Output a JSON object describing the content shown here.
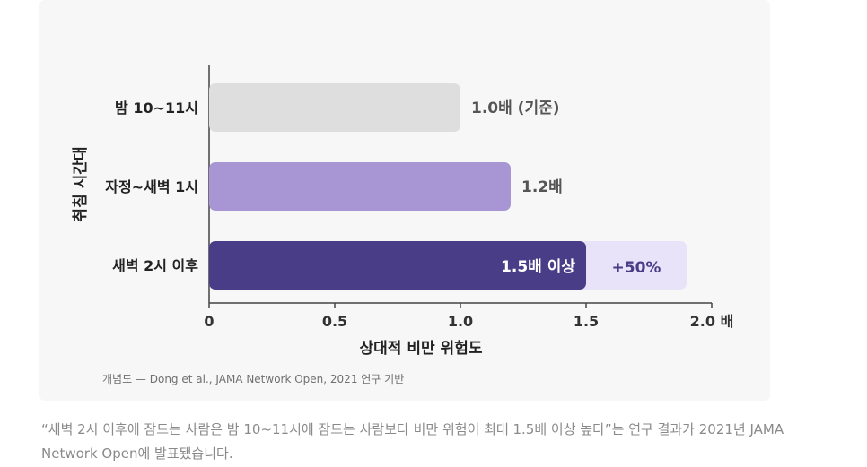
{
  "chart_data": {
    "type": "bar",
    "orientation": "horizontal",
    "categories": [
      "밤 10~11시",
      "자정~새벽 1시",
      "새벽 2시 이후"
    ],
    "values": [
      1.0,
      1.2,
      1.5
    ],
    "data_labels": [
      "1.0배 (기준)",
      "1.2배",
      "1.5배 이상"
    ],
    "extension": {
      "category": "새벽 2시 이후",
      "value_end": 1.9,
      "label": "+50%"
    },
    "xlim": [
      0,
      2.0
    ],
    "xticks": [
      0,
      0.5,
      1.0,
      1.5,
      2.0
    ],
    "xtick_labels": [
      "0",
      "0.5",
      "1.0",
      "1.5",
      "2.0 배"
    ],
    "xlabel": "상대적 비만 위험도",
    "ylabel": "취침 시간대",
    "grid": false,
    "colors": {
      "bars": [
        "#dededf",
        "#a896d4",
        "#4a3d88"
      ],
      "extension": "#e8e3f8",
      "extension_text": "#4a3d88",
      "label_dark": "#555555",
      "label_light": "#ffffff"
    }
  },
  "source": "개념도 — Dong et al., JAMA Network Open, 2021 연구 기반",
  "caption": "“새벽 2시 이후에 잠드는 사람은 밤 10~11시에 잠드는 사람보다 비만 위험이 최대 1.5배 이상 높다”는 연구 결과가 2021년 JAMA Network Open에 발표됐습니다."
}
